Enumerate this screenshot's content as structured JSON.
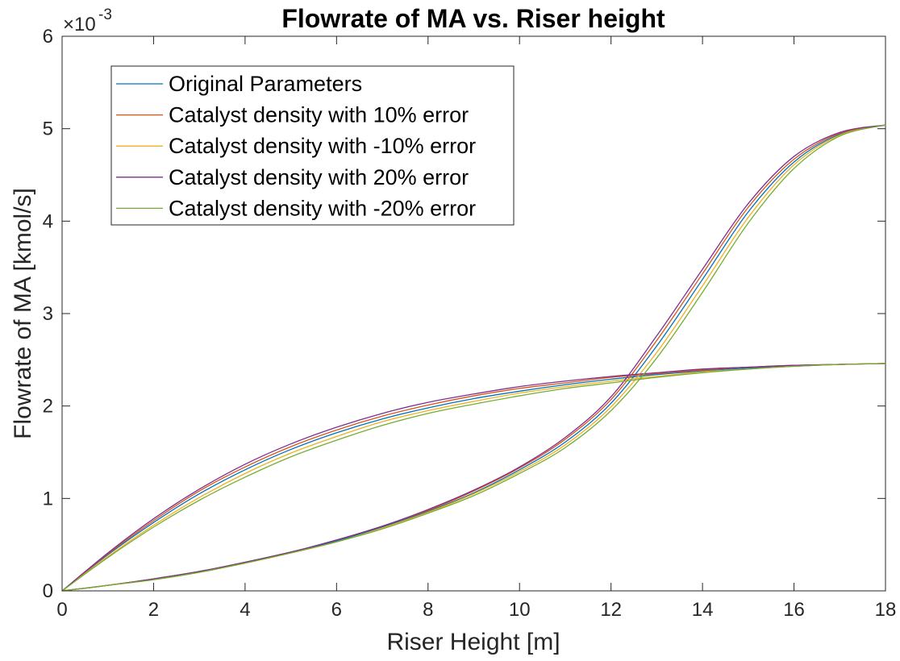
{
  "chart_data": {
    "type": "line",
    "title": "Flowrate of MA vs. Riser height",
    "xlabel": "Riser Height [m]",
    "ylabel": "Flowrate of MA [kmol/s]",
    "y_exponent_label": "×10",
    "y_exponent": "-3",
    "xlim": [
      0,
      18
    ],
    "ylim": [
      0,
      6
    ],
    "x_ticks": [
      0,
      2,
      4,
      6,
      8,
      10,
      12,
      14,
      16,
      18
    ],
    "y_ticks": [
      0,
      1,
      2,
      3,
      4,
      5,
      6
    ],
    "y_unit_scale": 0.001,
    "grid": false,
    "legend_position": "top-left",
    "x": [
      0,
      1,
      2,
      3,
      4,
      5,
      6,
      7,
      8,
      9,
      10,
      11,
      12,
      13,
      14,
      15,
      16,
      17,
      18
    ],
    "series": [
      {
        "name": "Original Parameters",
        "color": "#0072BD",
        "curves": [
          [
            0,
            0.39,
            0.74,
            1.05,
            1.31,
            1.53,
            1.71,
            1.86,
            1.98,
            2.08,
            2.16,
            2.23,
            2.29,
            2.34,
            2.38,
            2.41,
            2.43,
            2.45,
            2.46
          ],
          [
            0,
            0.06,
            0.13,
            0.21,
            0.31,
            0.42,
            0.54,
            0.69,
            0.86,
            1.06,
            1.31,
            1.61,
            2.03,
            2.65,
            3.37,
            4.1,
            4.64,
            4.94,
            5.04
          ]
        ]
      },
      {
        "name": "Catalyst density with 10% error",
        "color": "#D95319",
        "curves": [
          [
            0,
            0.4,
            0.76,
            1.08,
            1.34,
            1.56,
            1.74,
            1.89,
            2.01,
            2.11,
            2.19,
            2.25,
            2.31,
            2.35,
            2.39,
            2.42,
            2.44,
            2.45,
            2.46
          ],
          [
            0,
            0.06,
            0.13,
            0.21,
            0.31,
            0.42,
            0.55,
            0.7,
            0.87,
            1.08,
            1.33,
            1.64,
            2.07,
            2.71,
            3.43,
            4.15,
            4.67,
            4.95,
            5.04
          ]
        ]
      },
      {
        "name": "Catalyst density with -10% error",
        "color": "#EDB120",
        "curves": [
          [
            0,
            0.37,
            0.71,
            1.01,
            1.27,
            1.49,
            1.67,
            1.83,
            1.95,
            2.05,
            2.14,
            2.21,
            2.27,
            2.32,
            2.37,
            2.4,
            2.43,
            2.45,
            2.46
          ],
          [
            0,
            0.06,
            0.13,
            0.21,
            0.3,
            0.41,
            0.53,
            0.68,
            0.85,
            1.05,
            1.29,
            1.58,
            1.99,
            2.58,
            3.3,
            4.04,
            4.61,
            4.93,
            5.04
          ]
        ]
      },
      {
        "name": "Catalyst density with 20% error",
        "color": "#7E2F8E",
        "curves": [
          [
            0,
            0.41,
            0.78,
            1.1,
            1.37,
            1.59,
            1.77,
            1.92,
            2.04,
            2.13,
            2.21,
            2.27,
            2.32,
            2.36,
            2.4,
            2.42,
            2.44,
            2.45,
            2.46
          ],
          [
            0,
            0.06,
            0.13,
            0.21,
            0.31,
            0.42,
            0.55,
            0.7,
            0.88,
            1.09,
            1.34,
            1.66,
            2.1,
            2.76,
            3.48,
            4.19,
            4.7,
            4.96,
            5.04
          ]
        ]
      },
      {
        "name": "Catalyst density with -20% error",
        "color": "#77AC30",
        "curves": [
          [
            0,
            0.36,
            0.69,
            0.98,
            1.23,
            1.45,
            1.63,
            1.79,
            1.92,
            2.02,
            2.11,
            2.19,
            2.25,
            2.31,
            2.36,
            2.4,
            2.43,
            2.45,
            2.46
          ],
          [
            0,
            0.06,
            0.12,
            0.2,
            0.3,
            0.41,
            0.53,
            0.67,
            0.84,
            1.03,
            1.27,
            1.55,
            1.95,
            2.52,
            3.23,
            3.98,
            4.57,
            4.92,
            5.04
          ]
        ]
      }
    ]
  }
}
